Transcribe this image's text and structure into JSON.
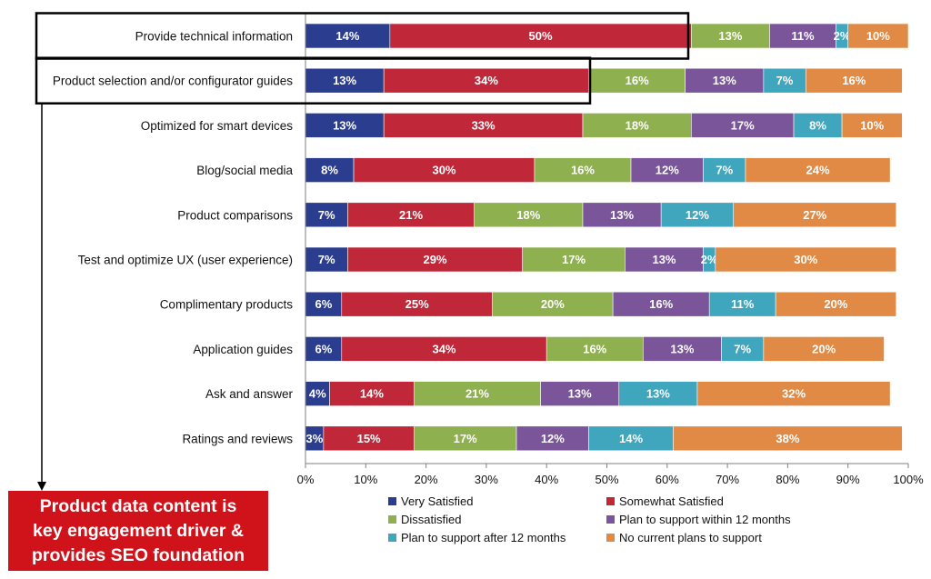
{
  "chart_data": {
    "type": "bar",
    "orientation": "horizontal",
    "stacked": true,
    "categories": [
      "Provide technical information",
      "Product selection and/or configurator guides",
      "Optimized for smart devices",
      "Blog/social media",
      "Product comparisons",
      "Test and optimize UX (user experience)",
      "Complimentary products",
      "Application guides",
      "Ask and answer",
      "Ratings and reviews"
    ],
    "series": [
      {
        "name": "Very Satisfied",
        "color": "#2b3d8f",
        "values": [
          14,
          13,
          13,
          8,
          7,
          7,
          6,
          6,
          4,
          3
        ]
      },
      {
        "name": "Somewhat Satisfied",
        "color": "#c0283a",
        "values": [
          50,
          34,
          33,
          30,
          21,
          29,
          25,
          34,
          14,
          15
        ]
      },
      {
        "name": "Dissatisfied",
        "color": "#8fb04f",
        "values": [
          13,
          16,
          18,
          16,
          18,
          17,
          20,
          16,
          21,
          17
        ]
      },
      {
        "name": "Plan to support within 12 months",
        "color": "#7a559a",
        "values": [
          11,
          13,
          17,
          12,
          13,
          13,
          16,
          13,
          13,
          12
        ]
      },
      {
        "name": "Plan to support after 12 months",
        "color": "#3fa6be",
        "values": [
          2,
          7,
          8,
          7,
          12,
          2,
          11,
          7,
          13,
          14
        ]
      },
      {
        "name": "No current plans to support",
        "color": "#e08a46",
        "values": [
          10,
          16,
          10,
          24,
          27,
          30,
          20,
          20,
          32,
          38
        ]
      }
    ],
    "x_ticks": [
      "0%",
      "10%",
      "20%",
      "30%",
      "40%",
      "50%",
      "60%",
      "70%",
      "80%",
      "90%",
      "100%"
    ],
    "xlim": [
      0,
      100
    ],
    "grid": false,
    "legend_position": "bottom",
    "highlighted_categories": [
      "Provide technical information",
      "Product selection and/or configurator guides"
    ]
  },
  "callout": {
    "lines": [
      "Product data content is",
      "key engagement driver &",
      "provides SEO foundation"
    ],
    "color": "#d0121b"
  }
}
